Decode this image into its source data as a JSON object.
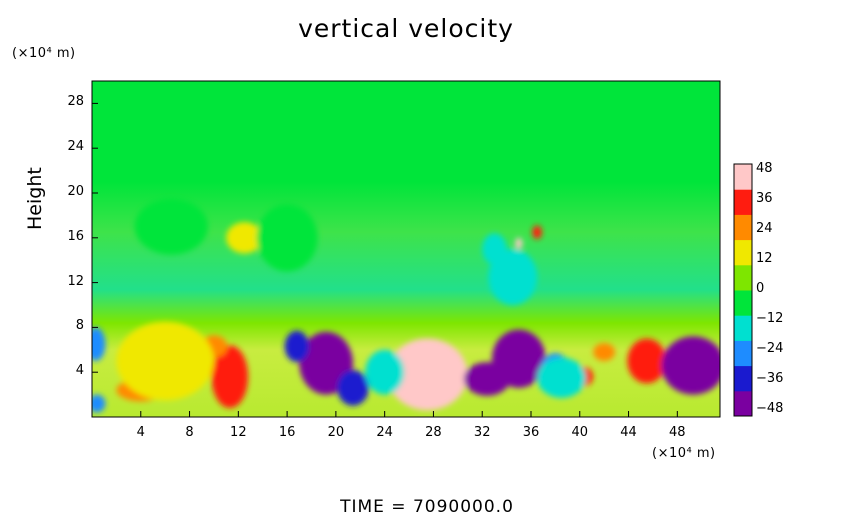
{
  "chart_data": {
    "type": "heatmap",
    "title": "vertical velocity",
    "ylabel": "Height",
    "y_unit": "(×10⁴ m)",
    "x_unit": "(×10⁴ m)",
    "xlim": [
      0,
      51.5
    ],
    "ylim": [
      0,
      30
    ],
    "x_ticks": [
      "4",
      "8",
      "12",
      "16",
      "20",
      "24",
      "28",
      "32",
      "36",
      "40",
      "44",
      "48"
    ],
    "y_ticks": [
      "4",
      "8",
      "12",
      "16",
      "20",
      "24",
      "28"
    ],
    "colorbar": {
      "range": [
        -50,
        50
      ],
      "ticks": [
        "48",
        "36",
        "24",
        "12",
        "0",
        "−12",
        "−24",
        "−36",
        "−48"
      ],
      "colors": [
        "#7a00a0",
        "#1a1acf",
        "#1e8cff",
        "#00e0d0",
        "#00e53a",
        "#7ee600",
        "#f0e800",
        "#ff8a00",
        "#ff1c10",
        "#ffc8c8"
      ]
    },
    "background_value": 0,
    "features": [
      {
        "x": 27.5,
        "y": 3.8,
        "rx": 3.3,
        "ry": 3.2,
        "value": 48
      },
      {
        "x": 11.3,
        "y": 3.6,
        "rx": 1.5,
        "ry": 2.8,
        "value": 38
      },
      {
        "x": 4.0,
        "y": 2.4,
        "rx": 2.0,
        "ry": 1.0,
        "value": 22
      },
      {
        "x": 10.0,
        "y": 6.3,
        "rx": 1.1,
        "ry": 1.0,
        "value": 26
      },
      {
        "x": 40.2,
        "y": 3.6,
        "rx": 0.9,
        "ry": 0.9,
        "value": 36
      },
      {
        "x": 45.5,
        "y": 5.0,
        "rx": 1.6,
        "ry": 2.0,
        "value": 36
      },
      {
        "x": 42.0,
        "y": 5.8,
        "rx": 0.9,
        "ry": 0.8,
        "value": 26
      },
      {
        "x": 12.5,
        "y": 16.0,
        "rx": 1.5,
        "ry": 1.4,
        "value": 16
      },
      {
        "x": 36.5,
        "y": 16.5,
        "rx": 0.4,
        "ry": 0.6,
        "value": 30
      },
      {
        "x": 35.0,
        "y": 15.5,
        "rx": 0.3,
        "ry": 0.5,
        "value": 40
      },
      {
        "x": 19.2,
        "y": 4.8,
        "rx": 2.2,
        "ry": 2.8,
        "value": -48
      },
      {
        "x": 21.4,
        "y": 2.6,
        "rx": 1.3,
        "ry": 1.6,
        "value": -40
      },
      {
        "x": 16.8,
        "y": 6.3,
        "rx": 1.0,
        "ry": 1.4,
        "value": -32
      },
      {
        "x": 32.4,
        "y": 3.4,
        "rx": 1.9,
        "ry": 1.5,
        "value": -42
      },
      {
        "x": 35.0,
        "y": 5.2,
        "rx": 2.2,
        "ry": 2.6,
        "value": -44
      },
      {
        "x": 38.0,
        "y": 4.2,
        "rx": 1.2,
        "ry": 1.5,
        "value": -30
      },
      {
        "x": 49.3,
        "y": 4.6,
        "rx": 2.6,
        "ry": 2.6,
        "value": -48
      },
      {
        "x": 0.3,
        "y": 6.5,
        "rx": 0.8,
        "ry": 1.5,
        "value": -30
      },
      {
        "x": 0.4,
        "y": 1.2,
        "rx": 0.7,
        "ry": 0.8,
        "value": -28
      },
      {
        "x": 24.0,
        "y": 4.0,
        "rx": 1.6,
        "ry": 2.0,
        "value": -16
      },
      {
        "x": 38.5,
        "y": 3.5,
        "rx": 2.0,
        "ry": 1.8,
        "value": -14
      },
      {
        "x": 33.0,
        "y": 15.0,
        "rx": 1.0,
        "ry": 1.4,
        "value": -20
      },
      {
        "x": 34.5,
        "y": 12.5,
        "rx": 2.0,
        "ry": 2.5,
        "value": -14
      },
      {
        "x": 16.0,
        "y": 16.0,
        "rx": 2.5,
        "ry": 3.0,
        "value": -10
      },
      {
        "x": 6.5,
        "y": 17.0,
        "rx": 3.0,
        "ry": 2.5,
        "value": -8
      },
      {
        "x": 6.0,
        "y": 5.0,
        "rx": 4.0,
        "ry": 3.5,
        "value": 10
      }
    ]
  },
  "footer": "TIME  =  7090000.0"
}
